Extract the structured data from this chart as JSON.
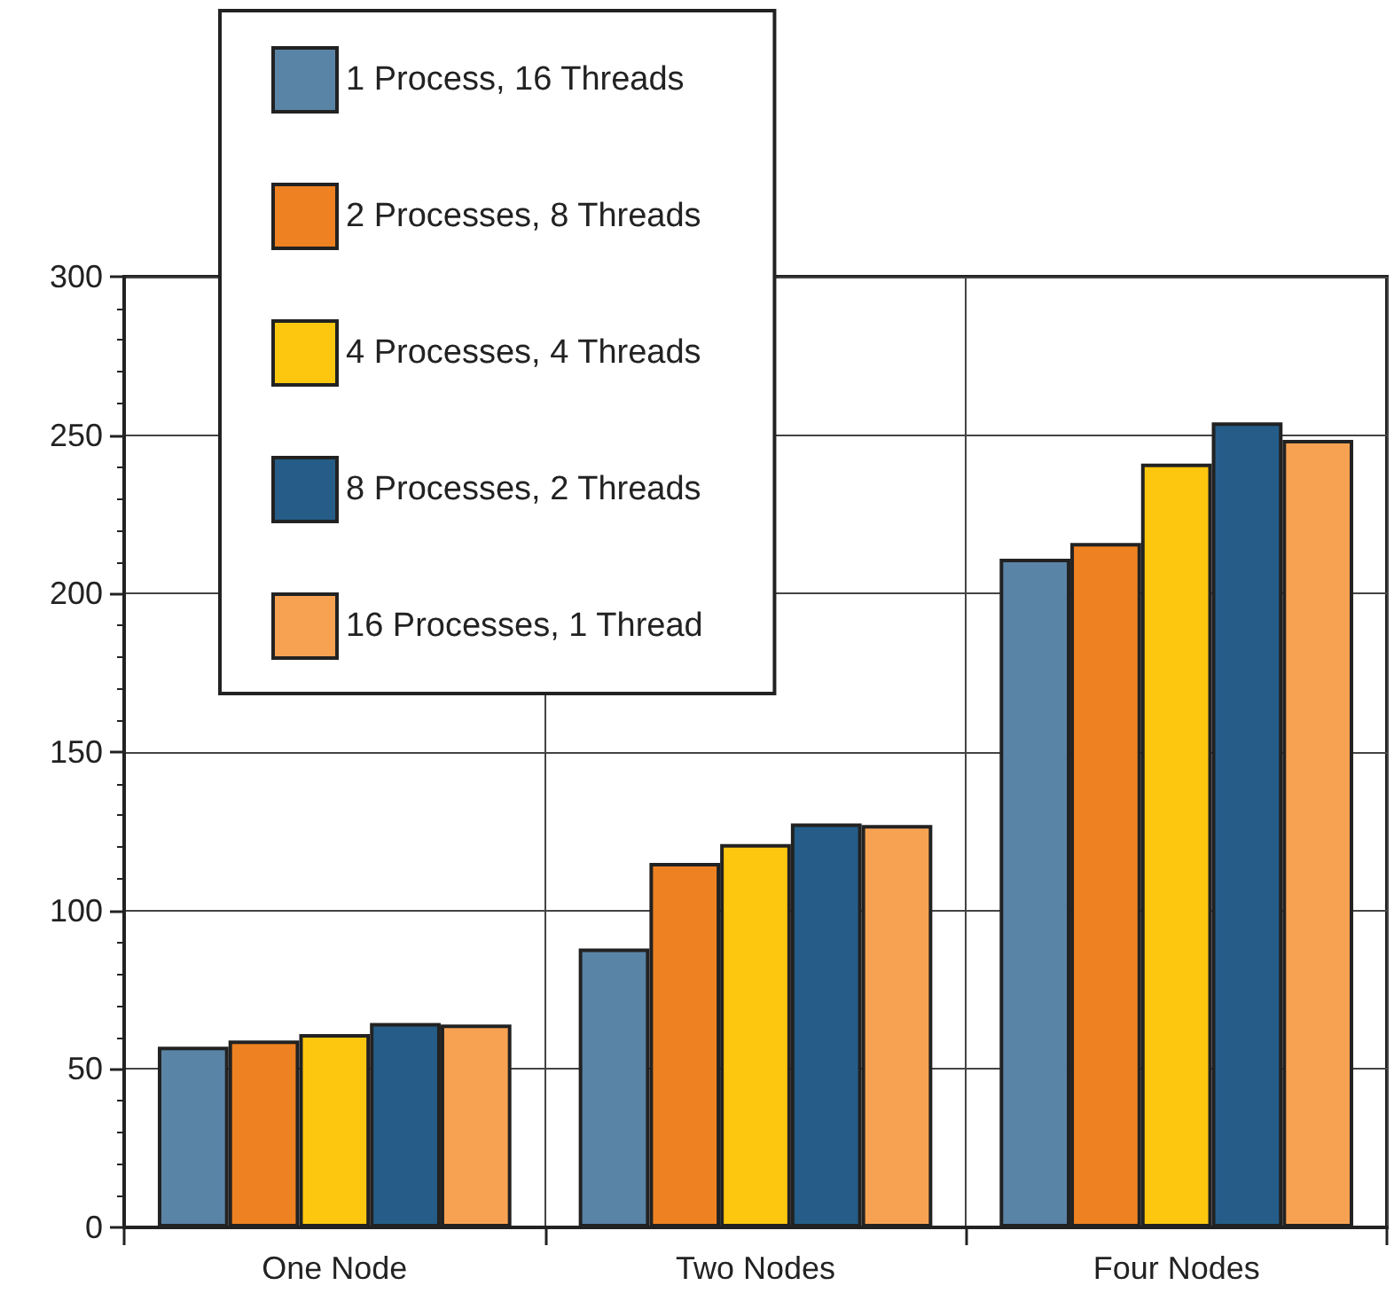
{
  "chart_data": {
    "type": "bar",
    "categories": [
      "One Node",
      "Two Nodes",
      "Four Nodes"
    ],
    "series": [
      {
        "name": "1 Process, 16 Threads",
        "color": "#5a84a6",
        "values": [
          57,
          88,
          211
        ]
      },
      {
        "name": "2 Processes, 8 Threads",
        "color": "#ee8222",
        "values": [
          59,
          115,
          216
        ]
      },
      {
        "name": "4 Processes, 4 Threads",
        "color": "#fdc70f",
        "values": [
          61,
          121,
          241
        ]
      },
      {
        "name": "8 Processes, 2 Threads",
        "color": "#255d88",
        "values": [
          64.5,
          127.5,
          254
        ]
      },
      {
        "name": "16 Processes, 1 Thread",
        "color": "#f7a253",
        "values": [
          64,
          127,
          248.5
        ]
      }
    ],
    "ylim": [
      0,
      300
    ],
    "yticks": [
      0,
      50,
      100,
      150,
      200,
      250,
      300
    ],
    "grid": true,
    "legend": "top left"
  }
}
